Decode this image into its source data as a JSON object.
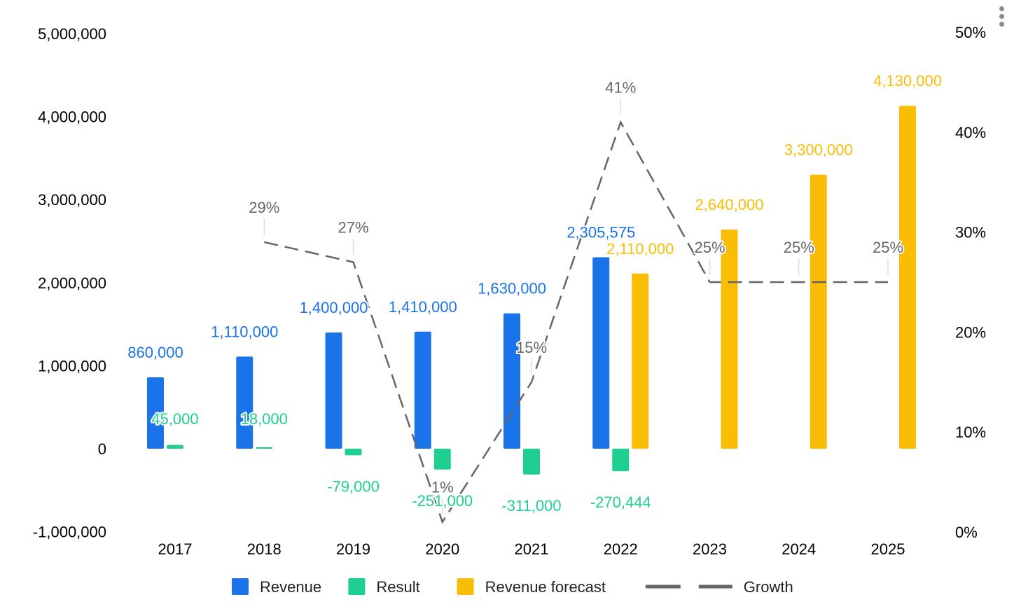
{
  "chart_data": {
    "type": "bar",
    "categories": [
      "2017",
      "2018",
      "2019",
      "2020",
      "2021",
      "2022",
      "2023",
      "2024",
      "2025"
    ],
    "y_left": {
      "min": -1000000,
      "max": 5000000,
      "ticks": [
        -1000000,
        0,
        1000000,
        2000000,
        3000000,
        4000000,
        5000000
      ],
      "tick_labels": [
        "-1,000,000",
        "0",
        "1,000,000",
        "2,000,000",
        "3,000,000",
        "4,000,000",
        "5,000,000"
      ]
    },
    "y_right": {
      "min": 0,
      "max": 50,
      "ticks": [
        0,
        10,
        20,
        30,
        40,
        50
      ],
      "tick_labels": [
        "0%",
        "10%",
        "20%",
        "30%",
        "40%",
        "50%"
      ]
    },
    "series": [
      {
        "name": "Revenue",
        "kind": "bar",
        "axis": "left",
        "color": "#1a73e8",
        "values": [
          860000,
          1110000,
          1400000,
          1410000,
          1630000,
          2305575,
          null,
          null,
          null
        ],
        "labels": [
          "860,000",
          "1,110,000",
          "1,400,000",
          "1,410,000",
          "1,630,000",
          "2,305,575",
          "",
          "",
          ""
        ]
      },
      {
        "name": "Result",
        "kind": "bar",
        "axis": "left",
        "color": "#1ecf90",
        "values": [
          45000,
          18000,
          -79000,
          -251000,
          -311000,
          -270444,
          null,
          null,
          null
        ],
        "labels": [
          "45,000",
          "18,000",
          "-79,000",
          "-251,000",
          "-311,000",
          "-270,444",
          "",
          "",
          ""
        ]
      },
      {
        "name": "Revenue forecast",
        "kind": "bar",
        "axis": "left",
        "color": "#fbbc04",
        "values": [
          null,
          null,
          null,
          null,
          null,
          2110000,
          2640000,
          3300000,
          4130000
        ],
        "labels": [
          "",
          "",
          "",
          "",
          "",
          "2,110,000",
          "2,640,000",
          "3,300,000",
          "4,130,000"
        ]
      },
      {
        "name": "Growth",
        "kind": "line",
        "axis": "right",
        "color": "#666666",
        "dashed": true,
        "values": [
          null,
          29,
          27,
          1,
          15,
          41,
          25,
          25,
          25
        ],
        "labels": [
          "",
          "29%",
          "27%",
          "1%",
          "15%",
          "41%",
          "25%",
          "25%",
          "25%"
        ]
      }
    ],
    "legend_position": "bottom",
    "grid": false
  }
}
